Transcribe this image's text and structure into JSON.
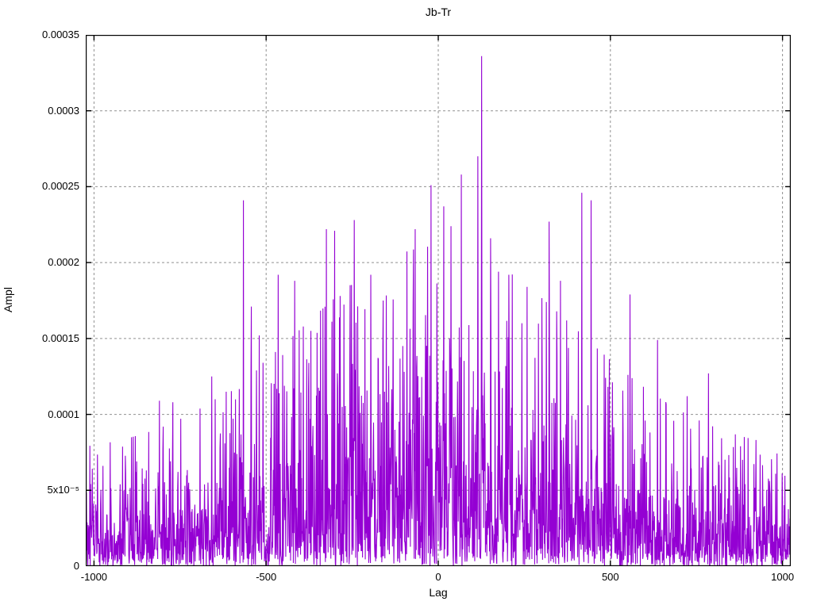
{
  "title": "Jb-Tr",
  "axes": {
    "x_label": "Lag",
    "y_label": "Ampl",
    "x_ticks": [
      {
        "value": -1000,
        "label": "-1000"
      },
      {
        "value": -500,
        "label": "-500"
      },
      {
        "value": 0,
        "label": "0"
      },
      {
        "value": 500,
        "label": "500"
      },
      {
        "value": 1000,
        "label": "1000"
      }
    ],
    "y_ticks": [
      {
        "value": 0,
        "label": "0"
      },
      {
        "value": 5e-05,
        "label": "5x10⁻⁵"
      },
      {
        "value": 0.0001,
        "label": "0.0001"
      },
      {
        "value": 0.00015,
        "label": "0.00015"
      },
      {
        "value": 0.0002,
        "label": "0.0002"
      },
      {
        "value": 0.00025,
        "label": "0.00025"
      },
      {
        "value": 0.0003,
        "label": "0.0003"
      },
      {
        "value": 0.00035,
        "label": "0.00035"
      }
    ]
  },
  "chart_data": {
    "type": "line",
    "title": "Jb-Tr",
    "xlabel": "Lag",
    "ylabel": "Ampl",
    "xlim": [
      -1024,
      1024
    ],
    "ylim": [
      0,
      0.00035
    ],
    "grid": "dashed-gray-major",
    "legend": "none",
    "line_color": "#9400D3",
    "grid_color": "#909090",
    "border_color": "#000000",
    "description": "Dense noisy cross-correlation amplitude vs lag; spiky impulse-like line series of ~2049 samples with a broad envelope peaking near lag 0; global maximum 0.000336 at lag 126.",
    "synth": {
      "n": 2049,
      "lag_min": -1024,
      "lag_max": 1024,
      "seed": 911,
      "env_base": 1.95e-05,
      "env_amp": 3.6e-05,
      "env_sigma": 560,
      "clamp": 3.8
    },
    "major_peaks": [
      {
        "lag": -810,
        "ampl": 0.000109
      },
      {
        "lag": -771,
        "ampl": 0.000108
      },
      {
        "lag": -658,
        "ampl": 0.000125
      },
      {
        "lag": -566,
        "ampl": 0.000241
      },
      {
        "lag": -543,
        "ampl": 0.000171
      },
      {
        "lag": -520,
        "ampl": 0.000152
      },
      {
        "lag": -465,
        "ampl": 0.000192
      },
      {
        "lag": -417,
        "ampl": 0.000188
      },
      {
        "lag": -370,
        "ampl": 0.000155
      },
      {
        "lag": -325,
        "ampl": 0.000222
      },
      {
        "lag": -301,
        "ampl": 0.000221
      },
      {
        "lag": -285,
        "ampl": 0.000178
      },
      {
        "lag": -244,
        "ampl": 0.000228
      },
      {
        "lag": -196,
        "ampl": 0.000192
      },
      {
        "lag": -160,
        "ampl": 0.000175
      },
      {
        "lag": -103,
        "ampl": 0.000145
      },
      {
        "lag": -67,
        "ampl": 0.000222
      },
      {
        "lag": -21,
        "ampl": 0.000251
      },
      {
        "lag": 16,
        "ampl": 0.000237
      },
      {
        "lag": 37,
        "ampl": 0.000224
      },
      {
        "lag": 67,
        "ampl": 0.000258
      },
      {
        "lag": 115,
        "ampl": 0.00027
      },
      {
        "lag": 126,
        "ampl": 0.000336
      },
      {
        "lag": 152,
        "ampl": 0.000216
      },
      {
        "lag": 175,
        "ampl": 0.000194
      },
      {
        "lag": 205,
        "ampl": 0.000192
      },
      {
        "lag": 258,
        "ampl": 0.000184
      },
      {
        "lag": 322,
        "ampl": 0.000227
      },
      {
        "lag": 355,
        "ampl": 0.000188
      },
      {
        "lag": 417,
        "ampl": 0.000246
      },
      {
        "lag": 444,
        "ampl": 0.000241
      },
      {
        "lag": 557,
        "ampl": 0.000179
      },
      {
        "lag": 637,
        "ampl": 0.000149
      },
      {
        "lag": 723,
        "ampl": 0.000112
      },
      {
        "lag": 785,
        "ampl": 0.000127
      }
    ]
  }
}
